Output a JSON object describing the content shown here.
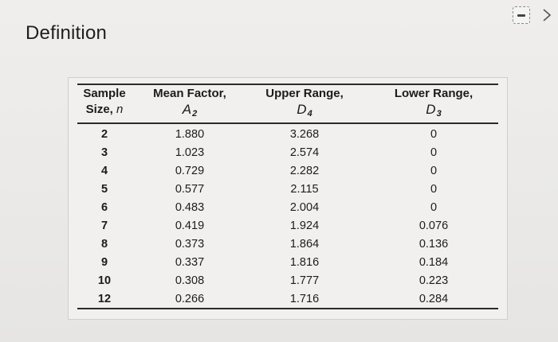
{
  "header": {
    "title": "Definition"
  },
  "table": {
    "columns": [
      {
        "line1": "Sample",
        "line2": "Size, ",
        "symbol": "n",
        "subscript": ""
      },
      {
        "line1": "Mean Factor,",
        "line2": "",
        "symbol": "A",
        "subscript": "2"
      },
      {
        "line1": "Upper Range,",
        "line2": "",
        "symbol": "D",
        "subscript": "4"
      },
      {
        "line1": "Lower Range,",
        "line2": "",
        "symbol": "D",
        "subscript": "3"
      }
    ],
    "rows": [
      [
        "2",
        "1.880",
        "3.268",
        "0"
      ],
      [
        "3",
        "1.023",
        "2.574",
        "0"
      ],
      [
        "4",
        "0.729",
        "2.282",
        "0"
      ],
      [
        "5",
        "0.577",
        "2.115",
        "0"
      ],
      [
        "6",
        "0.483",
        "2.004",
        "0"
      ],
      [
        "7",
        "0.419",
        "1.924",
        "0.076"
      ],
      [
        "8",
        "0.373",
        "1.864",
        "0.136"
      ],
      [
        "9",
        "0.337",
        "1.816",
        "0.184"
      ],
      [
        "10",
        "0.308",
        "1.777",
        "0.223"
      ],
      [
        "12",
        "0.266",
        "1.716",
        "0.284"
      ]
    ]
  }
}
